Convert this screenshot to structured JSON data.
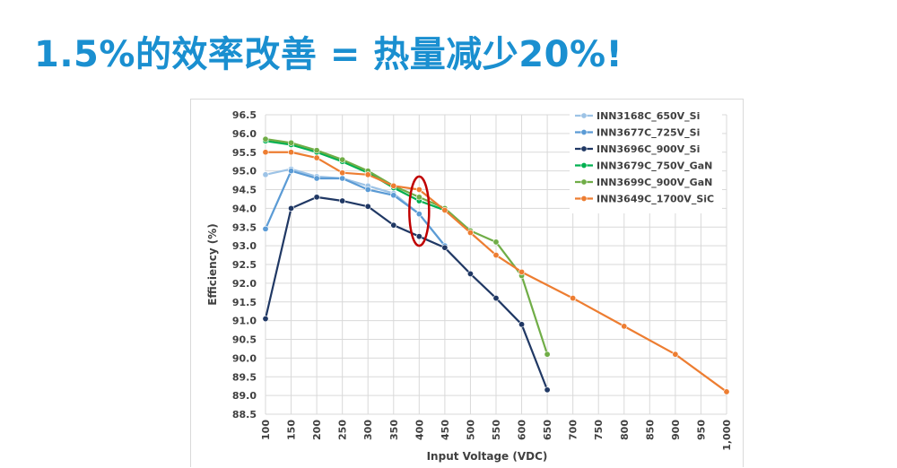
{
  "slide_title": "1.5%的效率改善 = 热量减少20%!",
  "chart_data": {
    "type": "line",
    "xlabel": "Input Voltage (VDC)",
    "ylabel": "Efficiency (%)",
    "ylim": [
      88.5,
      96.5
    ],
    "grid": true,
    "legend_position": "top-right",
    "x_ticks": [
      "100",
      "150",
      "200",
      "250",
      "300",
      "350",
      "400",
      "450",
      "500",
      "550",
      "600",
      "650",
      "700",
      "750",
      "800",
      "850",
      "900",
      "950",
      "1,000"
    ],
    "y_ticks": [
      "96.5",
      "96.0",
      "95.5",
      "95.0",
      "94.5",
      "94.0",
      "93.5",
      "93.0",
      "92.5",
      "92.0",
      "91.5",
      "91.0",
      "90.5",
      "90.0",
      "89.5",
      "89.0",
      "88.5"
    ],
    "series": [
      {
        "name": "INN3168C_650V_Si",
        "color": "#9dc3e6",
        "x": [
          100,
          150,
          200,
          250,
          300,
          350,
          400,
          450
        ],
        "y": [
          94.9,
          95.05,
          94.85,
          94.8,
          94.6,
          94.4,
          93.85,
          93.0
        ]
      },
      {
        "name": "INN3677C_725V_Si",
        "color": "#5b9bd5",
        "x": [
          100,
          150,
          200,
          250,
          300,
          350,
          400,
          450
        ],
        "y": [
          93.45,
          95.0,
          94.8,
          94.8,
          94.5,
          94.35,
          93.85,
          93.0
        ]
      },
      {
        "name": "INN3696C_900V_Si",
        "color": "#203864",
        "x": [
          100,
          150,
          200,
          250,
          300,
          350,
          400,
          450,
          500,
          550,
          600,
          650
        ],
        "y": [
          91.05,
          94.0,
          94.3,
          94.2,
          94.05,
          93.55,
          93.25,
          92.95,
          92.25,
          91.6,
          90.9,
          89.15
        ]
      },
      {
        "name": "INN3679C_750V_GaN",
        "color": "#00b050",
        "x": [
          100,
          150,
          200,
          250,
          300,
          350,
          400,
          450
        ],
        "y": [
          95.8,
          95.7,
          95.5,
          95.25,
          94.95,
          94.55,
          94.2,
          93.95
        ]
      },
      {
        "name": "INN3699C_900V_GaN",
        "color": "#70ad47",
        "x": [
          100,
          150,
          200,
          250,
          300,
          350,
          400,
          450,
          500,
          550,
          600,
          650
        ],
        "y": [
          95.85,
          95.75,
          95.55,
          95.3,
          95.0,
          94.6,
          94.3,
          94.0,
          93.4,
          93.1,
          92.2,
          90.1
        ]
      },
      {
        "name": "INN3649C_1700V_SiC",
        "color": "#ed7d31",
        "x": [
          100,
          150,
          200,
          250,
          300,
          350,
          400,
          450,
          500,
          550,
          600,
          700,
          800,
          900,
          1000
        ],
        "y": [
          95.5,
          95.5,
          95.35,
          94.95,
          94.9,
          94.6,
          94.5,
          93.95,
          93.35,
          92.75,
          92.3,
          91.6,
          90.85,
          90.1,
          89.1
        ]
      }
    ],
    "annotation": {
      "shape": "ellipse",
      "color": "#c00000",
      "x": 400,
      "y_range": [
        93.0,
        94.85
      ]
    }
  }
}
